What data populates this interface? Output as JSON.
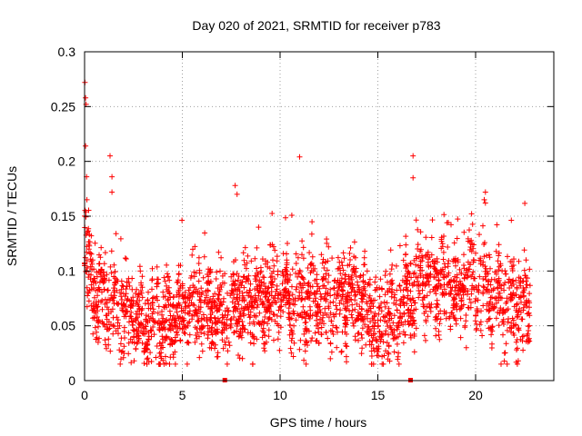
{
  "chart_data": {
    "type": "scatter",
    "title": "Day 020 of 2021, SRMTID for receiver p783",
    "xlabel": "GPS time / hours",
    "ylabel": "SRMTID / TECUs",
    "xlim": [
      0,
      24
    ],
    "ylim": [
      0,
      0.3
    ],
    "x_ticks": [
      0,
      5,
      10,
      15,
      20
    ],
    "x_tick_labels": [
      "0",
      "5",
      "10",
      "15",
      "20"
    ],
    "y_ticks": [
      0,
      0.05,
      0.1,
      0.15,
      0.2,
      0.25,
      0.3
    ],
    "y_tick_labels": [
      "0",
      "0.05",
      "0.1",
      "0.15",
      "0.2",
      "0.25",
      "0.3"
    ],
    "grid": true,
    "marker": "plus",
    "color": "#ff0000",
    "series": [
      {
        "name": "SRMTID",
        "x_range": [
          0,
          22.8
        ],
        "approx_points": 2600,
        "envelope": [
          {
            "x": 0.0,
            "y": 0.11
          },
          {
            "x": 0.5,
            "y": 0.085
          },
          {
            "x": 1.0,
            "y": 0.075
          },
          {
            "x": 2.0,
            "y": 0.062
          },
          {
            "x": 3.0,
            "y": 0.055
          },
          {
            "x": 4.0,
            "y": 0.05
          },
          {
            "x": 5.0,
            "y": 0.065
          },
          {
            "x": 6.0,
            "y": 0.07
          },
          {
            "x": 7.0,
            "y": 0.06
          },
          {
            "x": 8.0,
            "y": 0.075
          },
          {
            "x": 9.0,
            "y": 0.07
          },
          {
            "x": 10.0,
            "y": 0.08
          },
          {
            "x": 11.0,
            "y": 0.075
          },
          {
            "x": 12.0,
            "y": 0.07
          },
          {
            "x": 13.0,
            "y": 0.072
          },
          {
            "x": 14.0,
            "y": 0.075
          },
          {
            "x": 15.0,
            "y": 0.05
          },
          {
            "x": 16.0,
            "y": 0.065
          },
          {
            "x": 17.0,
            "y": 0.085
          },
          {
            "x": 18.0,
            "y": 0.09
          },
          {
            "x": 19.0,
            "y": 0.085
          },
          {
            "x": 20.0,
            "y": 0.09
          },
          {
            "x": 21.0,
            "y": 0.07
          },
          {
            "x": 22.0,
            "y": 0.068
          },
          {
            "x": 22.8,
            "y": 0.07
          }
        ],
        "outliers": [
          {
            "x": 0.02,
            "y": 0.272
          },
          {
            "x": 0.05,
            "y": 0.258
          },
          {
            "x": 0.08,
            "y": 0.252
          },
          {
            "x": 0.05,
            "y": 0.214
          },
          {
            "x": 0.1,
            "y": 0.186
          },
          {
            "x": 0.12,
            "y": 0.165
          },
          {
            "x": 1.3,
            "y": 0.205
          },
          {
            "x": 1.4,
            "y": 0.186
          },
          {
            "x": 1.4,
            "y": 0.172
          },
          {
            "x": 7.7,
            "y": 0.178
          },
          {
            "x": 7.8,
            "y": 0.17
          },
          {
            "x": 11.0,
            "y": 0.204
          },
          {
            "x": 16.8,
            "y": 0.205
          },
          {
            "x": 16.8,
            "y": 0.185
          },
          {
            "x": 20.5,
            "y": 0.172
          },
          {
            "x": 20.5,
            "y": 0.162
          },
          {
            "x": 21.3,
            "y": 0.015
          }
        ],
        "dropouts": [
          {
            "x": 7.15,
            "y": 0
          },
          {
            "x": 16.65,
            "y": 0
          }
        ]
      }
    ]
  }
}
